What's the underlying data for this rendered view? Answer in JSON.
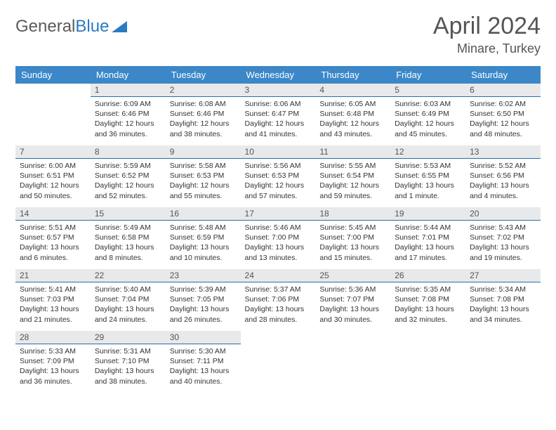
{
  "brand": {
    "part1": "General",
    "part2": "Blue"
  },
  "title": "April 2024",
  "location": "Minare, Turkey",
  "colors": {
    "header_bg": "#3b87c8",
    "header_fg": "#ffffff",
    "daynum_bg": "#e8e9ea",
    "daynum_border": "#2a6fa8",
    "text": "#333333",
    "logo_gray": "#5a5a5a",
    "logo_blue": "#2a7bbf"
  },
  "weekdays": [
    "Sunday",
    "Monday",
    "Tuesday",
    "Wednesday",
    "Thursday",
    "Friday",
    "Saturday"
  ],
  "weeks": [
    [
      null,
      {
        "n": "1",
        "sr": "6:09 AM",
        "ss": "6:46 PM",
        "d1": "12 hours",
        "d2": "and 36 minutes."
      },
      {
        "n": "2",
        "sr": "6:08 AM",
        "ss": "6:46 PM",
        "d1": "12 hours",
        "d2": "and 38 minutes."
      },
      {
        "n": "3",
        "sr": "6:06 AM",
        "ss": "6:47 PM",
        "d1": "12 hours",
        "d2": "and 41 minutes."
      },
      {
        "n": "4",
        "sr": "6:05 AM",
        "ss": "6:48 PM",
        "d1": "12 hours",
        "d2": "and 43 minutes."
      },
      {
        "n": "5",
        "sr": "6:03 AM",
        "ss": "6:49 PM",
        "d1": "12 hours",
        "d2": "and 45 minutes."
      },
      {
        "n": "6",
        "sr": "6:02 AM",
        "ss": "6:50 PM",
        "d1": "12 hours",
        "d2": "and 48 minutes."
      }
    ],
    [
      {
        "n": "7",
        "sr": "6:00 AM",
        "ss": "6:51 PM",
        "d1": "12 hours",
        "d2": "and 50 minutes."
      },
      {
        "n": "8",
        "sr": "5:59 AM",
        "ss": "6:52 PM",
        "d1": "12 hours",
        "d2": "and 52 minutes."
      },
      {
        "n": "9",
        "sr": "5:58 AM",
        "ss": "6:53 PM",
        "d1": "12 hours",
        "d2": "and 55 minutes."
      },
      {
        "n": "10",
        "sr": "5:56 AM",
        "ss": "6:53 PM",
        "d1": "12 hours",
        "d2": "and 57 minutes."
      },
      {
        "n": "11",
        "sr": "5:55 AM",
        "ss": "6:54 PM",
        "d1": "12 hours",
        "d2": "and 59 minutes."
      },
      {
        "n": "12",
        "sr": "5:53 AM",
        "ss": "6:55 PM",
        "d1": "13 hours",
        "d2": "and 1 minute."
      },
      {
        "n": "13",
        "sr": "5:52 AM",
        "ss": "6:56 PM",
        "d1": "13 hours",
        "d2": "and 4 minutes."
      }
    ],
    [
      {
        "n": "14",
        "sr": "5:51 AM",
        "ss": "6:57 PM",
        "d1": "13 hours",
        "d2": "and 6 minutes."
      },
      {
        "n": "15",
        "sr": "5:49 AM",
        "ss": "6:58 PM",
        "d1": "13 hours",
        "d2": "and 8 minutes."
      },
      {
        "n": "16",
        "sr": "5:48 AM",
        "ss": "6:59 PM",
        "d1": "13 hours",
        "d2": "and 10 minutes."
      },
      {
        "n": "17",
        "sr": "5:46 AM",
        "ss": "7:00 PM",
        "d1": "13 hours",
        "d2": "and 13 minutes."
      },
      {
        "n": "18",
        "sr": "5:45 AM",
        "ss": "7:00 PM",
        "d1": "13 hours",
        "d2": "and 15 minutes."
      },
      {
        "n": "19",
        "sr": "5:44 AM",
        "ss": "7:01 PM",
        "d1": "13 hours",
        "d2": "and 17 minutes."
      },
      {
        "n": "20",
        "sr": "5:43 AM",
        "ss": "7:02 PM",
        "d1": "13 hours",
        "d2": "and 19 minutes."
      }
    ],
    [
      {
        "n": "21",
        "sr": "5:41 AM",
        "ss": "7:03 PM",
        "d1": "13 hours",
        "d2": "and 21 minutes."
      },
      {
        "n": "22",
        "sr": "5:40 AM",
        "ss": "7:04 PM",
        "d1": "13 hours",
        "d2": "and 24 minutes."
      },
      {
        "n": "23",
        "sr": "5:39 AM",
        "ss": "7:05 PM",
        "d1": "13 hours",
        "d2": "and 26 minutes."
      },
      {
        "n": "24",
        "sr": "5:37 AM",
        "ss": "7:06 PM",
        "d1": "13 hours",
        "d2": "and 28 minutes."
      },
      {
        "n": "25",
        "sr": "5:36 AM",
        "ss": "7:07 PM",
        "d1": "13 hours",
        "d2": "and 30 minutes."
      },
      {
        "n": "26",
        "sr": "5:35 AM",
        "ss": "7:08 PM",
        "d1": "13 hours",
        "d2": "and 32 minutes."
      },
      {
        "n": "27",
        "sr": "5:34 AM",
        "ss": "7:08 PM",
        "d1": "13 hours",
        "d2": "and 34 minutes."
      }
    ],
    [
      {
        "n": "28",
        "sr": "5:33 AM",
        "ss": "7:09 PM",
        "d1": "13 hours",
        "d2": "and 36 minutes."
      },
      {
        "n": "29",
        "sr": "5:31 AM",
        "ss": "7:10 PM",
        "d1": "13 hours",
        "d2": "and 38 minutes."
      },
      {
        "n": "30",
        "sr": "5:30 AM",
        "ss": "7:11 PM",
        "d1": "13 hours",
        "d2": "and 40 minutes."
      },
      null,
      null,
      null,
      null
    ]
  ],
  "labels": {
    "sunrise": "Sunrise:",
    "sunset": "Sunset:",
    "daylight": "Daylight:"
  }
}
